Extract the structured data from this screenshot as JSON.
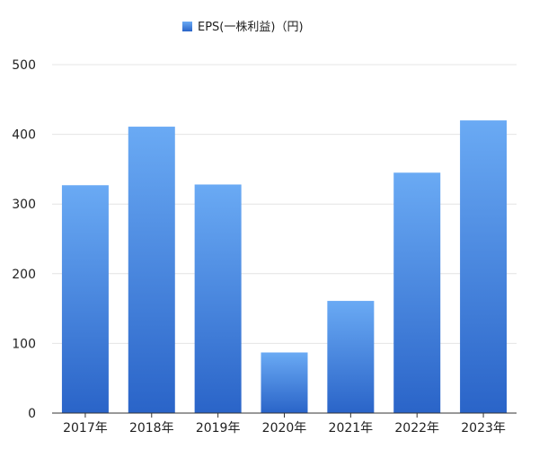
{
  "chart_data": {
    "type": "bar",
    "categories": [
      "2017年",
      "2018年",
      "2019年",
      "2020年",
      "2021年",
      "2022年",
      "2023年"
    ],
    "series": [
      {
        "name": "EPS(一株利益)（円)",
        "values": [
          327,
          411,
          328,
          87,
          161,
          345,
          420
        ]
      }
    ],
    "ylim": [
      0,
      500
    ],
    "yticks": [
      0,
      100,
      200,
      300,
      400,
      500
    ],
    "legend": {
      "position": "top-center"
    },
    "grid": true,
    "colors": {
      "bar_top": "#6aaaf4",
      "bar_bottom": "#2a64c8",
      "grid": "#e4e4e4",
      "axis": "#333333"
    }
  }
}
